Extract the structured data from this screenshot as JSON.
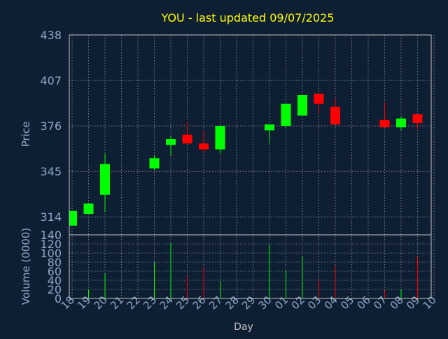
{
  "chart_data": {
    "type": "candlestick",
    "title": "YOU - last updated 09/07/2025",
    "colors": {
      "background": "#0f1f33",
      "title": "#ffff00",
      "axis_text": "#8fa8c8",
      "grid": "#c0c0c0",
      "up": "#00ff00",
      "down": "#ff0000"
    },
    "grid": true,
    "price_panel": {
      "ylabel": "Price",
      "ylim": [
        301.7,
        438
      ],
      "yticks": [
        "438",
        "407",
        "376",
        "345",
        "314"
      ],
      "ytick_values": [
        438,
        407,
        376,
        345,
        314
      ]
    },
    "volume_panel": {
      "ylabel": "Volume (0000)",
      "ylim": [
        0,
        140
      ],
      "yticks": [
        "140",
        "120",
        "100",
        "80",
        "60",
        "40",
        "20",
        "0"
      ],
      "ytick_values": [
        140,
        120,
        100,
        80,
        60,
        40,
        20,
        0
      ]
    },
    "xlabel": "Day",
    "x_ticks": [
      "18",
      "19",
      "20",
      "21",
      "22",
      "23",
      "24",
      "25",
      "26",
      "27",
      "28",
      "29",
      "30",
      "01",
      "02",
      "03",
      "04",
      "05",
      "06",
      "07",
      "08",
      "09",
      "10"
    ],
    "candles": [
      {
        "day": 0,
        "open": 308,
        "close": 318,
        "high": 318,
        "low": 308,
        "volume": 0
      },
      {
        "day": 1,
        "open": 316,
        "close": 323,
        "high": 323,
        "low": 316,
        "volume": 20
      },
      {
        "day": 2,
        "open": 329,
        "close": 350,
        "high": 357,
        "low": 317,
        "volume": 55
      },
      {
        "day": 5,
        "open": 347,
        "close": 354,
        "high": 356,
        "low": 346,
        "volume": 80
      },
      {
        "day": 6,
        "open": 363,
        "close": 367,
        "high": 369,
        "low": 356,
        "volume": 122
      },
      {
        "day": 7,
        "open": 370,
        "close": 364,
        "high": 379,
        "low": 364,
        "volume": 48
      },
      {
        "day": 8,
        "open": 364,
        "close": 360,
        "high": 373,
        "low": 358,
        "volume": 68
      },
      {
        "day": 9,
        "open": 360,
        "close": 376,
        "high": 376,
        "low": 357,
        "volume": 38
      },
      {
        "day": 12,
        "open": 373,
        "close": 377,
        "high": 377,
        "low": 364,
        "volume": 118
      },
      {
        "day": 13,
        "open": 376,
        "close": 391,
        "high": 391,
        "low": 375,
        "volume": 62
      },
      {
        "day": 14,
        "open": 383,
        "close": 397,
        "high": 397,
        "low": 383,
        "volume": 92
      },
      {
        "day": 15,
        "open": 398,
        "close": 391,
        "high": 398,
        "low": 384,
        "volume": 40
      },
      {
        "day": 16,
        "open": 389,
        "close": 377,
        "high": 395,
        "low": 377,
        "volume": 72
      },
      {
        "day": 19,
        "open": 380,
        "close": 375,
        "high": 392,
        "low": 375,
        "volume": 18
      },
      {
        "day": 20,
        "open": 375,
        "close": 381,
        "high": 382,
        "low": 373,
        "volume": 20
      },
      {
        "day": 21,
        "open": 384,
        "close": 378,
        "high": 384,
        "low": 374,
        "volume": 92
      }
    ]
  }
}
